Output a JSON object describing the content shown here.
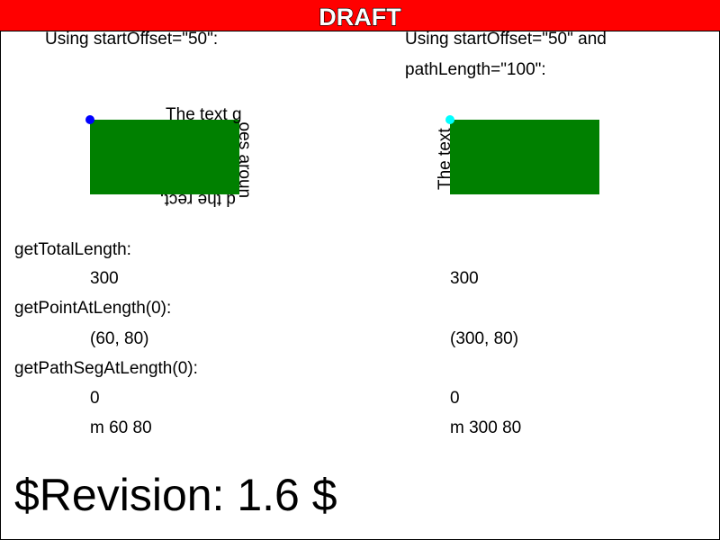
{
  "banner": {
    "label": "DRAFT",
    "color": "#ff0000"
  },
  "left_demo": {
    "caption": "Using startOffset=\"50\":",
    "text_on_path": "The text goes around the rect.",
    "dot_color": "#0000ff",
    "rect_color": "#008000"
  },
  "right_demo": {
    "caption_line1": "Using startOffset=\"50\" and",
    "caption_line2": "pathLength=\"100\":",
    "text_on_path": "The text goes around the rect.",
    "dot_color": "#00ffff",
    "rect_color": "#008000"
  },
  "results": {
    "total_length_label": "getTotalLength:",
    "total_length_left": "300",
    "total_length_right": "300",
    "point_label": "getPointAtLength(0):",
    "point_left": "(60, 80)",
    "point_right": "(300, 80)",
    "seg_label": "getPathSegAtLength(0):",
    "seg_index_left": "0",
    "seg_index_right": "0",
    "seg_path_left": "m 60 80",
    "seg_path_right": "m 300 80"
  },
  "revision": "$Revision: 1.6 $"
}
